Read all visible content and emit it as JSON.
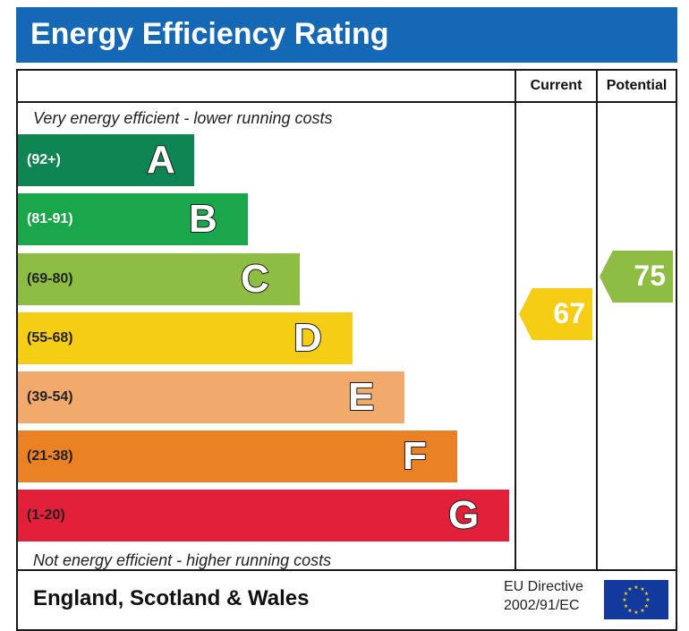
{
  "title": "Energy Efficiency Rating",
  "columns": {
    "current": "Current",
    "potential": "Potential"
  },
  "captions": {
    "top": "Very energy efficient - lower running costs",
    "bottom": "Not energy efficient - higher running costs"
  },
  "bands": [
    {
      "letter": "A",
      "range": "(92+)",
      "color": "#0f8553",
      "text_color": "#ffffff"
    },
    {
      "letter": "B",
      "range": "(81-91)",
      "color": "#1aa64b",
      "text_color": "#ffffff"
    },
    {
      "letter": "C",
      "range": "(69-80)",
      "color": "#8dbd43",
      "text_color": "#222222"
    },
    {
      "letter": "D",
      "range": "(55-68)",
      "color": "#f5cd15",
      "text_color": "#222222"
    },
    {
      "letter": "E",
      "range": "(39-54)",
      "color": "#f1aa6c",
      "text_color": "#222222"
    },
    {
      "letter": "F",
      "range": "(21-38)",
      "color": "#eb8125",
      "text_color": "#222222"
    },
    {
      "letter": "G",
      "range": "(1-20)",
      "color": "#e22039",
      "text_color": "#222222"
    }
  ],
  "current": {
    "value": "67",
    "band": "D",
    "color": "#f5cd15"
  },
  "potential": {
    "value": "75",
    "band": "C",
    "color": "#8dbd43"
  },
  "footer": {
    "region": "England, Scotland & Wales",
    "directive_line1": "EU Directive",
    "directive_line2": "2002/91/EC",
    "flag_icon": "eu-flag-icon"
  }
}
